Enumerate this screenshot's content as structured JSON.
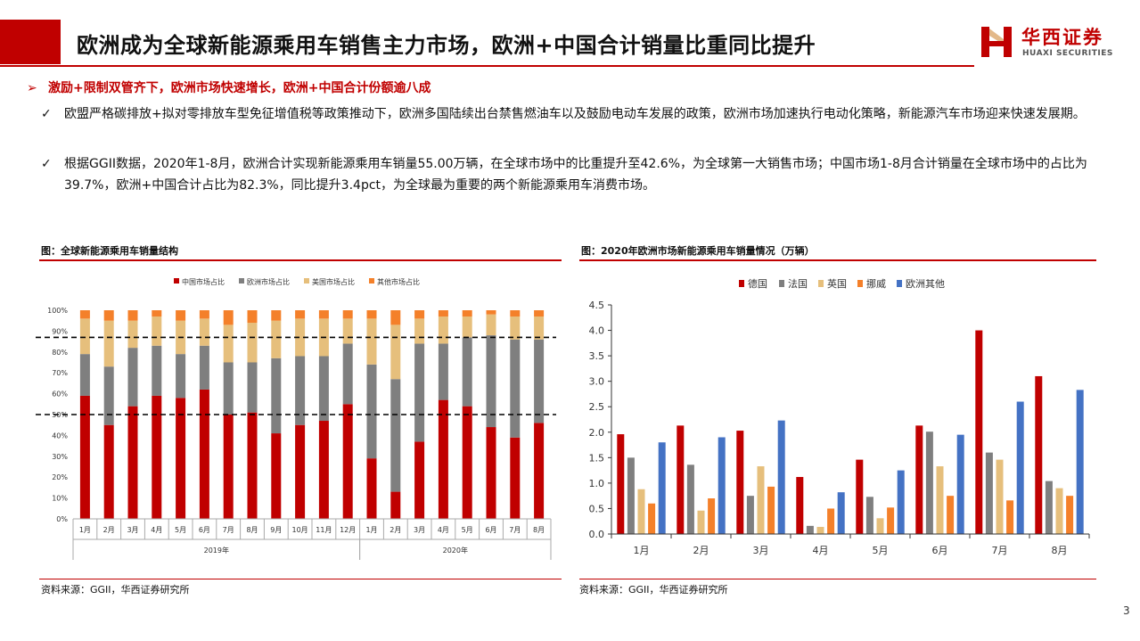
{
  "header": {
    "title": "欧洲成为全球新能源乘用车销售主力市场，欧洲+中国合计销量比重同比提升",
    "logo_cn": "华西证券",
    "logo_en": "HUAXI SECURITIES"
  },
  "bullets": {
    "main": "激励+限制双管齐下，欧洲市场快速增长，欧洲+中国合计份额逾八成",
    "items": [
      "欧盟严格碳排放+拟对零排放车型免征增值税等政策推动下，欧洲多国陆续出台禁售燃油车以及鼓励电动车发展的政策，欧洲市场加速执行电动化策略，新能源汽车市场迎来快速发展期。",
      "根据GGII数据，2020年1-8月，欧洲合计实现新能源乘用车销量55.00万辆，在全球市场中的比重提升至42.6%，为全球第一大销售市场；中国市场1-8月合计销量在全球市场中的占比为39.7%，欧洲+中国合计占比为82.3%，同比提升3.4pct，为全球最为重要的两个新能源乘用车消费市场。"
    ]
  },
  "figures": {
    "left_title": "图：全球新能源乘用车销量结构",
    "right_title": "图：2020年欧洲市场新能源乘用车销量情况（万辆）",
    "left_source": "资料来源：GGII，华西证券研究所",
    "right_source": "资料来源：GGII，华西证券研究所"
  },
  "page_number": "3",
  "colors": {
    "brand_red": "#c00000",
    "china": "#c00000",
    "europe": "#7f7f7f",
    "usa": "#e6bf7c",
    "other": "#f4802a",
    "germany": "#c00000",
    "france": "#7f7f7f",
    "uk": "#e6bf7c",
    "norway": "#f4802a",
    "europe_other": "#4472c4"
  },
  "chart_data": [
    {
      "type": "bar",
      "stacked": true,
      "title": "图：全球新能源乘用车销量结构",
      "categories": [
        "1月",
        "2月",
        "3月",
        "4月",
        "5月",
        "6月",
        "7月",
        "8月",
        "9月",
        "10月",
        "11月",
        "12月",
        "1月",
        "2月",
        "3月",
        "4月",
        "5月",
        "6月",
        "7月",
        "8月"
      ],
      "groups": [
        {
          "label": "2019年",
          "count": 12
        },
        {
          "label": "2020年",
          "count": 8
        }
      ],
      "series": [
        {
          "name": "中国市场占比",
          "values": [
            59,
            45,
            54,
            59,
            58,
            62,
            50,
            51,
            41,
            45,
            47,
            55,
            29,
            13,
            37,
            57,
            54,
            44,
            39,
            46
          ]
        },
        {
          "name": "欧洲市场占比",
          "values": [
            20,
            28,
            28,
            24,
            21,
            21,
            25,
            24,
            36,
            33,
            31,
            29,
            45,
            54,
            47,
            27,
            33,
            44,
            47,
            40
          ]
        },
        {
          "name": "美国市场占比",
          "values": [
            17,
            22,
            13,
            14,
            16,
            13,
            18,
            19,
            18,
            18,
            18,
            12,
            22,
            26,
            12,
            13,
            10,
            10,
            11,
            11
          ]
        },
        {
          "name": "其他市场占比",
          "values": [
            4,
            5,
            5,
            3,
            5,
            4,
            7,
            6,
            5,
            4,
            4,
            4,
            4,
            7,
            4,
            3,
            3,
            2,
            3,
            3
          ]
        }
      ],
      "ylim": [
        0,
        100
      ],
      "yticks": [
        "0%",
        "10%",
        "20%",
        "30%",
        "40%",
        "50%",
        "60%",
        "70%",
        "80%",
        "90%",
        "100%"
      ],
      "reference_lines": [
        50,
        87
      ],
      "legend_position": "top"
    },
    {
      "type": "bar",
      "title": "图：2020年欧洲市场新能源乘用车销量情况（万辆）",
      "categories": [
        "1月",
        "2月",
        "3月",
        "4月",
        "5月",
        "6月",
        "7月",
        "8月"
      ],
      "series": [
        {
          "name": "德国",
          "values": [
            1.96,
            2.13,
            2.03,
            1.12,
            1.46,
            2.13,
            4.0,
            3.1
          ]
        },
        {
          "name": "法国",
          "values": [
            1.5,
            1.36,
            0.75,
            0.16,
            0.73,
            2.01,
            1.6,
            1.04
          ]
        },
        {
          "name": "英国",
          "values": [
            0.88,
            0.46,
            1.33,
            0.14,
            0.31,
            1.33,
            1.46,
            0.9
          ]
        },
        {
          "name": "挪威",
          "values": [
            0.6,
            0.7,
            0.93,
            0.5,
            0.52,
            0.75,
            0.66,
            0.75
          ]
        },
        {
          "name": "欧洲其他",
          "values": [
            1.8,
            1.9,
            2.23,
            0.82,
            1.25,
            1.95,
            2.6,
            2.83
          ]
        }
      ],
      "ylim": [
        0,
        4.5
      ],
      "yticks": [
        "0.0",
        "0.5",
        "1.0",
        "1.5",
        "2.0",
        "2.5",
        "3.0",
        "3.5",
        "4.0",
        "4.5"
      ],
      "legend_position": "top"
    }
  ]
}
